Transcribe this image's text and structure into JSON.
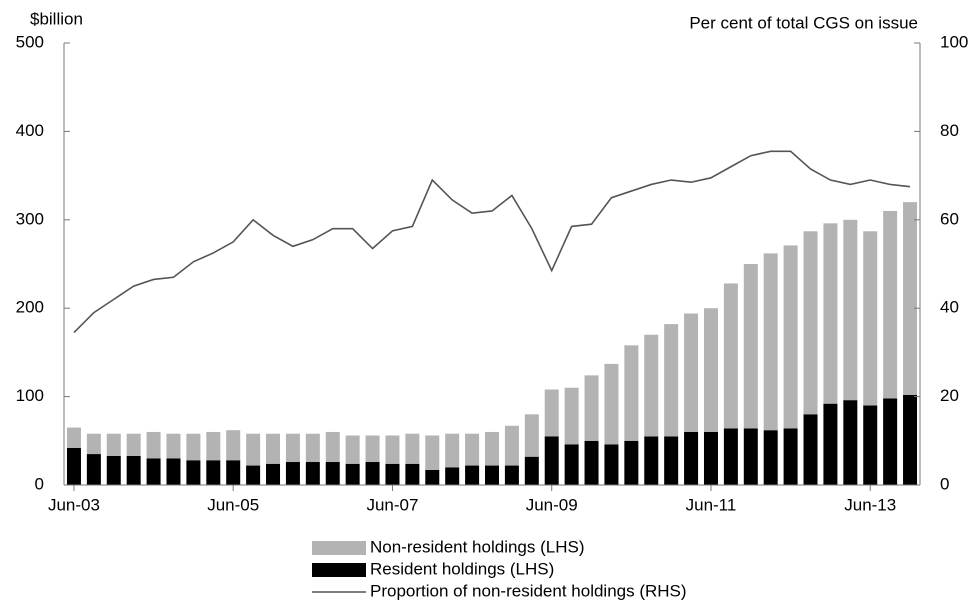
{
  "chart_data": {
    "type": "bar",
    "stacked": true,
    "y_label": "$billion",
    "y2_label": "Per cent of total CGS on issue",
    "categories": [
      "Jun-03",
      null,
      null,
      null,
      null,
      null,
      null,
      null,
      "Jun-05",
      null,
      null,
      null,
      null,
      null,
      null,
      null,
      "Jun-07",
      null,
      null,
      null,
      null,
      null,
      null,
      null,
      "Jun-09",
      null,
      null,
      null,
      null,
      null,
      null,
      null,
      "Jun-11",
      null,
      null,
      null,
      null,
      null,
      null,
      null,
      "Jun-13",
      null,
      null
    ],
    "series": [
      {
        "name": "Resident holdings (LHS)",
        "color": "#000000",
        "values": [
          42,
          35,
          33,
          33,
          30,
          30,
          28,
          28,
          28,
          22,
          24,
          26,
          26,
          26,
          24,
          26,
          24,
          24,
          17,
          20,
          22,
          22,
          22,
          32,
          55,
          46,
          50,
          46,
          50,
          55,
          55,
          60,
          60,
          64,
          64,
          62,
          64,
          80,
          92,
          96,
          90,
          98,
          102
        ]
      },
      {
        "name": "Non-resident holdings (LHS)",
        "color": "#b3b3b3",
        "values": [
          23,
          23,
          25,
          25,
          30,
          28,
          30,
          32,
          34,
          36,
          34,
          32,
          32,
          34,
          32,
          30,
          32,
          34,
          39,
          38,
          36,
          38,
          45,
          48,
          53,
          64,
          74,
          91,
          108,
          115,
          127,
          134,
          140,
          164,
          186,
          200,
          207,
          207,
          204,
          204,
          197,
          212,
          218
        ]
      },
      {
        "name": "Proportion of non-resident holdings (RHS)",
        "color": "#555555",
        "type": "line",
        "axis": "y2",
        "values": [
          34.5,
          39,
          42,
          45,
          46.5,
          47,
          50.5,
          52.5,
          55,
          60,
          56.5,
          54,
          55.5,
          58,
          58,
          53.5,
          57.5,
          58.5,
          69,
          64.5,
          61.5,
          62,
          65.5,
          58,
          48.5,
          58.5,
          59,
          65,
          66.5,
          68,
          69,
          68.5,
          69.5,
          72,
          74.5,
          75.5,
          75.5,
          71.5,
          69,
          68,
          69,
          68,
          67.5
        ]
      }
    ],
    "legend_order": [
      1,
      0,
      2
    ],
    "ylim": [
      0,
      500
    ],
    "yticks": [
      0,
      100,
      200,
      300,
      400,
      500
    ],
    "y2lim": [
      0,
      100
    ],
    "y2ticks": [
      0,
      20,
      40,
      60,
      80,
      100
    ]
  }
}
